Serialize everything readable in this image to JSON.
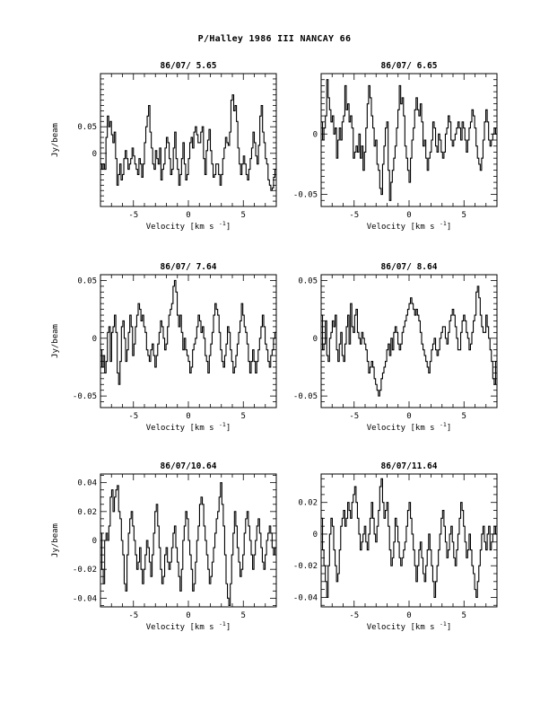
{
  "page": {
    "title": "P/Halley 1986 III   NANCAY    66"
  },
  "chart_data": [
    {
      "type": "line",
      "title": "86/07/ 5.65",
      "xlabel": "Velocity [km s",
      "xlabel_sup": "-1",
      "xlabel_end": "]",
      "ylabel": "Jy/beam",
      "xlim": [
        -8,
        8
      ],
      "ylim": [
        -0.1,
        0.15
      ],
      "xticks": [
        -5,
        0,
        5
      ],
      "xtick_labels": [
        "-5",
        "0",
        "5"
      ],
      "yticks": [
        0,
        0.05
      ],
      "ytick_labels": [
        "0",
        "0.05"
      ],
      "series": [
        {
          "values": [
            -0.02,
            -0.03,
            -0.02,
            -0.03,
            0.03,
            0.07,
            0.05,
            0.06,
            0.035,
            0.02,
            0.04,
            -0.01,
            -0.06,
            -0.04,
            -0.02,
            -0.05,
            -0.04,
            -0.01,
            0.005,
            -0.01,
            -0.03,
            -0.02,
            -0.01,
            0.01,
            -0.005,
            -0.02,
            -0.03,
            -0.04,
            -0.01,
            -0.02,
            -0.045,
            -0.02,
            0.02,
            0.05,
            0.07,
            0.09,
            0.04,
            0.01,
            -0.02,
            -0.03,
            0.005,
            -0.01,
            -0.02,
            0.01,
            -0.05,
            -0.03,
            -0.02,
            0.01,
            0.03,
            0.02,
            -0.01,
            -0.04,
            -0.03,
            0.01,
            0.04,
            -0.01,
            -0.03,
            -0.06,
            -0.04,
            -0.01,
            0.02,
            -0.02,
            -0.05,
            -0.04,
            -0.01,
            0.02,
            0.03,
            0.01,
            0.04,
            0.05,
            0.035,
            0.02,
            0.02,
            0.04,
            0.05,
            -0.01,
            -0.04,
            0.005,
            0.025,
            0.045,
            0.005,
            -0.02,
            -0.045,
            -0.04,
            -0.02,
            -0.02,
            -0.04,
            -0.06,
            -0.04,
            -0.01,
            0.01,
            0.03,
            0.02,
            0.015,
            0.04,
            0.1,
            0.11,
            0.08,
            0.09,
            0.06,
            0.01,
            -0.02,
            -0.04,
            -0.02,
            -0.005,
            -0.02,
            -0.04,
            -0.05,
            -0.03,
            -0.01,
            0.01,
            0.04,
            0.02,
            -0.005,
            -0.02,
            0.015,
            0.07,
            0.09,
            0.04,
            0.02,
            -0.01,
            -0.02,
            -0.05,
            -0.06,
            -0.07,
            -0.065,
            -0.045,
            -0.03
          ]
        }
      ]
    },
    {
      "type": "line",
      "title": "86/07/ 6.65",
      "xlabel": "Velocity [km s",
      "xlabel_sup": "-1",
      "xlabel_end": "]",
      "ylabel": "",
      "xlim": [
        -8,
        8
      ],
      "ylim": [
        -0.06,
        0.05
      ],
      "xticks": [
        -5,
        0,
        5
      ],
      "xtick_labels": [
        "-5",
        "0",
        "5"
      ],
      "yticks": [
        -0.05,
        0
      ],
      "ytick_labels": [
        "-0.05",
        "0"
      ],
      "series": [
        {
          "values": [
            0.01,
            -0.005,
            0.005,
            0.015,
            0.045,
            0.03,
            0.02,
            0.01,
            0.015,
            0.0,
            0.005,
            -0.02,
            -0.005,
            0.005,
            -0.005,
            0.01,
            0.015,
            0.04,
            0.02,
            0.025,
            0.01,
            0.015,
            0.005,
            -0.02,
            -0.015,
            -0.01,
            -0.015,
            0.0,
            -0.02,
            -0.01,
            -0.03,
            -0.015,
            0.005,
            0.025,
            0.04,
            0.03,
            0.015,
            0.005,
            -0.01,
            -0.005,
            -0.025,
            -0.03,
            -0.045,
            -0.05,
            -0.025,
            -0.01,
            0.005,
            0.01,
            -0.03,
            -0.055,
            -0.04,
            -0.03,
            -0.02,
            -0.01,
            0.005,
            0.02,
            0.04,
            0.025,
            0.03,
            0.015,
            -0.01,
            -0.02,
            -0.03,
            -0.04,
            -0.02,
            -0.005,
            0.005,
            0.02,
            0.03,
            0.02,
            0.015,
            0.025,
            0.01,
            -0.01,
            -0.005,
            -0.02,
            -0.03,
            -0.02,
            -0.015,
            -0.005,
            0.01,
            0.005,
            -0.01,
            -0.015,
            0.0,
            -0.005,
            -0.015,
            -0.02,
            -0.015,
            0.0,
            0.005,
            0.015,
            0.01,
            -0.005,
            -0.01,
            -0.005,
            0.0,
            0.005,
            0.01,
            0.005,
            -0.005,
            0.01,
            0.005,
            -0.005,
            -0.015,
            -0.005,
            0.005,
            0.01,
            0.02,
            0.015,
            0.005,
            -0.01,
            -0.02,
            -0.025,
            -0.03,
            -0.02,
            -0.005,
            0.01,
            0.02,
            0.01,
            -0.005,
            -0.01,
            -0.005,
            0.0,
            0.005,
            0.0
          ]
        }
      ]
    },
    {
      "type": "line",
      "title": "86/07/ 7.64",
      "xlabel": "Velocity [km s",
      "xlabel_sup": "-1",
      "xlabel_end": "]",
      "ylabel": "Jy/beam",
      "xlim": [
        -8,
        8
      ],
      "ylim": [
        -0.06,
        0.055
      ],
      "xticks": [
        -5,
        0,
        5
      ],
      "xtick_labels": [
        "-5",
        "0",
        "5"
      ],
      "yticks": [
        -0.05,
        0,
        0.05
      ],
      "ytick_labels": [
        "-0.05",
        "0",
        "0.05"
      ],
      "series": [
        {
          "values": [
            -0.01,
            -0.025,
            -0.015,
            -0.03,
            -0.02,
            0.005,
            0.01,
            -0.02,
            0.005,
            0.01,
            0.02,
            0.005,
            -0.03,
            -0.04,
            -0.02,
            0.01,
            0.015,
            0.0,
            -0.02,
            -0.01,
            0.005,
            0.02,
            0.01,
            -0.015,
            -0.005,
            0.01,
            0.02,
            0.03,
            0.025,
            0.015,
            0.02,
            0.01,
            0.005,
            -0.01,
            -0.015,
            -0.02,
            -0.01,
            -0.005,
            -0.015,
            -0.025,
            -0.015,
            -0.005,
            0.005,
            0.015,
            0.01,
            0.0,
            -0.01,
            -0.005,
            0.01,
            0.02,
            0.025,
            0.03,
            0.045,
            0.05,
            0.04,
            0.02,
            0.01,
            0.02,
            0.005,
            -0.01,
            0.0,
            -0.01,
            -0.015,
            -0.02,
            -0.03,
            -0.025,
            -0.01,
            -0.005,
            0.0,
            0.01,
            0.02,
            0.015,
            0.005,
            0.01,
            0.0,
            -0.015,
            -0.02,
            -0.03,
            -0.015,
            -0.005,
            0.005,
            0.02,
            0.03,
            0.025,
            0.02,
            0.005,
            -0.01,
            -0.02,
            -0.025,
            -0.015,
            -0.005,
            0.01,
            0.005,
            -0.01,
            -0.02,
            -0.03,
            -0.025,
            -0.015,
            -0.005,
            0.005,
            0.015,
            0.03,
            0.02,
            0.01,
            0.005,
            -0.005,
            -0.02,
            -0.03,
            -0.02,
            -0.01,
            -0.02,
            -0.03,
            -0.02,
            -0.01,
            0.0,
            0.01,
            0.02,
            0.01,
            -0.005,
            -0.01,
            -0.02,
            -0.025,
            -0.015,
            -0.01,
            0.0,
            0.005
          ]
        }
      ]
    },
    {
      "type": "line",
      "title": "86/07/ 8.64",
      "xlabel": "Velocity [km s",
      "xlabel_sup": "-1",
      "xlabel_end": "]",
      "ylabel": "",
      "xlim": [
        -8,
        8
      ],
      "ylim": [
        -0.06,
        0.055
      ],
      "xticks": [
        -5,
        0,
        5
      ],
      "xtick_labels": [
        "-5",
        "0",
        "5"
      ],
      "yticks": [
        -0.05,
        0,
        0.05
      ],
      "ytick_labels": [
        "-0.05",
        "0",
        "0.05"
      ],
      "series": [
        {
          "values": [
            0.02,
            -0.01,
            -0.005,
            0.015,
            -0.015,
            -0.02,
            0.0,
            0.005,
            0.015,
            0.01,
            0.02,
            -0.01,
            -0.02,
            -0.005,
            0.005,
            -0.015,
            -0.02,
            -0.005,
            0.01,
            0.02,
            -0.005,
            0.03,
            0.01,
            0.005,
            0.02,
            0.025,
            0.005,
            0.0,
            -0.005,
            0.005,
            0.0,
            -0.005,
            -0.01,
            -0.02,
            -0.03,
            -0.025,
            -0.02,
            -0.025,
            -0.035,
            -0.04,
            -0.045,
            -0.05,
            -0.045,
            -0.035,
            -0.03,
            -0.025,
            -0.02,
            -0.01,
            -0.005,
            -0.015,
            0.0,
            -0.01,
            0.005,
            0.01,
            0.005,
            -0.005,
            -0.01,
            -0.005,
            0.005,
            0.01,
            0.015,
            0.02,
            0.025,
            0.03,
            0.035,
            0.03,
            0.025,
            0.02,
            0.025,
            0.02,
            0.015,
            0.005,
            -0.005,
            -0.01,
            -0.015,
            -0.02,
            -0.025,
            -0.03,
            -0.02,
            -0.01,
            -0.005,
            0.0,
            -0.01,
            -0.015,
            -0.01,
            0.0,
            0.005,
            0.01,
            0.01,
            0.0,
            -0.005,
            0.005,
            0.015,
            0.02,
            0.025,
            0.02,
            0.01,
            0.0,
            -0.01,
            -0.01,
            0.005,
            0.015,
            0.02,
            0.015,
            0.005,
            0.0,
            -0.01,
            -0.005,
            0.005,
            0.015,
            0.02,
            0.04,
            0.045,
            0.035,
            0.02,
            0.01,
            0.005,
            0.005,
            0.02,
            0.01,
            0.0,
            -0.01,
            -0.02,
            -0.035,
            -0.04,
            -0.02
          ]
        }
      ]
    },
    {
      "type": "line",
      "title": "86/07/10.64",
      "xlabel": "Velocity [km s",
      "xlabel_sup": "-1",
      "xlabel_end": "]",
      "ylabel": "Jy/beam",
      "xlim": [
        -8,
        8
      ],
      "ylim": [
        -0.046,
        0.046
      ],
      "xticks": [
        -5,
        0,
        5
      ],
      "xtick_labels": [
        "-5",
        "0",
        "5"
      ],
      "yticks": [
        -0.04,
        -0.02,
        0,
        0.02,
        0.04
      ],
      "ytick_labels": [
        "-0.04",
        "-0.02",
        "0",
        "0.02",
        "0.04"
      ],
      "series": [
        {
          "values": [
            0.005,
            -0.02,
            -0.03,
            0.0,
            0.005,
            0.0,
            0.01,
            0.03,
            0.035,
            0.02,
            0.03,
            0.035,
            0.038,
            0.02,
            0.015,
            0.0,
            -0.01,
            -0.03,
            -0.035,
            -0.01,
            0.005,
            0.015,
            0.02,
            0.01,
            0.0,
            -0.01,
            -0.02,
            -0.015,
            -0.005,
            -0.02,
            -0.03,
            -0.02,
            -0.01,
            0.0,
            -0.005,
            -0.015,
            -0.025,
            -0.01,
            0.005,
            0.02,
            0.025,
            0.01,
            -0.005,
            -0.02,
            -0.03,
            -0.025,
            -0.01,
            -0.005,
            -0.015,
            -0.02,
            -0.015,
            -0.005,
            0.005,
            0.01,
            -0.005,
            -0.015,
            -0.025,
            -0.035,
            -0.02,
            0.0,
            0.01,
            0.02,
            0.015,
            0.0,
            -0.01,
            -0.02,
            -0.035,
            -0.03,
            -0.015,
            0.0,
            0.01,
            0.025,
            0.03,
            0.025,
            0.01,
            0.0,
            -0.01,
            -0.02,
            -0.03,
            -0.025,
            -0.015,
            -0.005,
            0.005,
            0.015,
            0.02,
            0.03,
            0.04,
            0.025,
            0.01,
            -0.01,
            -0.03,
            -0.04,
            -0.045,
            -0.03,
            -0.01,
            0.005,
            0.02,
            0.01,
            -0.005,
            -0.015,
            -0.025,
            -0.02,
            -0.01,
            0.005,
            0.015,
            0.02,
            0.01,
            0.0,
            -0.01,
            -0.02,
            -0.01,
            0.0,
            0.01,
            0.015,
            0.005,
            -0.005,
            -0.015,
            -0.02,
            -0.01,
            0.0,
            0.005,
            0.01,
            0.005,
            -0.005,
            -0.01,
            -0.005
          ]
        }
      ]
    },
    {
      "type": "line",
      "title": "86/07/11.64",
      "xlabel": "Velocity [km s",
      "xlabel_sup": "-1",
      "xlabel_end": "]",
      "ylabel": "",
      "xlim": [
        -8,
        8
      ],
      "ylim": [
        -0.046,
        0.038
      ],
      "xticks": [
        -5,
        0,
        5
      ],
      "xtick_labels": [
        "-5",
        "0",
        "5"
      ],
      "yticks": [
        -0.04,
        -0.02,
        0,
        0.02
      ],
      "ytick_labels": [
        "-0.04",
        "-0.02",
        "0",
        "0.02"
      ],
      "series": [
        {
          "values": [
            0.01,
            -0.01,
            -0.02,
            -0.03,
            -0.04,
            -0.02,
            0.0,
            0.01,
            0.005,
            -0.01,
            -0.02,
            -0.03,
            -0.025,
            -0.01,
            0.005,
            0.01,
            0.015,
            0.005,
            0.01,
            0.02,
            0.015,
            0.01,
            0.02,
            0.025,
            0.03,
            0.02,
            0.01,
            0.0,
            -0.01,
            -0.005,
            0.0,
            0.005,
            -0.005,
            -0.01,
            0.0,
            0.01,
            0.02,
            0.01,
            0.0,
            -0.005,
            0.005,
            0.015,
            0.03,
            0.035,
            0.02,
            0.01,
            0.015,
            0.02,
            0.005,
            -0.01,
            -0.02,
            -0.015,
            -0.005,
            0.01,
            0.005,
            -0.005,
            -0.015,
            -0.02,
            -0.015,
            -0.01,
            -0.005,
            0.005,
            0.015,
            0.02,
            0.01,
            0.0,
            -0.01,
            -0.02,
            -0.03,
            -0.02,
            -0.01,
            -0.005,
            -0.015,
            -0.025,
            -0.03,
            -0.02,
            -0.01,
            0.0,
            -0.01,
            -0.02,
            -0.03,
            -0.04,
            -0.03,
            -0.02,
            -0.01,
            0.0,
            0.01,
            0.015,
            0.005,
            -0.005,
            -0.015,
            -0.01,
            0.0,
            0.005,
            -0.005,
            -0.015,
            -0.02,
            -0.01,
            0.0,
            0.01,
            0.02,
            0.015,
            0.005,
            -0.005,
            -0.015,
            -0.01,
            0.0,
            -0.01,
            -0.02,
            -0.025,
            -0.035,
            -0.04,
            -0.03,
            -0.02,
            -0.01,
            0.0,
            0.005,
            -0.005,
            -0.01,
            0.0,
            0.005,
            -0.01,
            -0.005,
            0.0,
            0.005,
            0.0
          ]
        }
      ]
    }
  ]
}
